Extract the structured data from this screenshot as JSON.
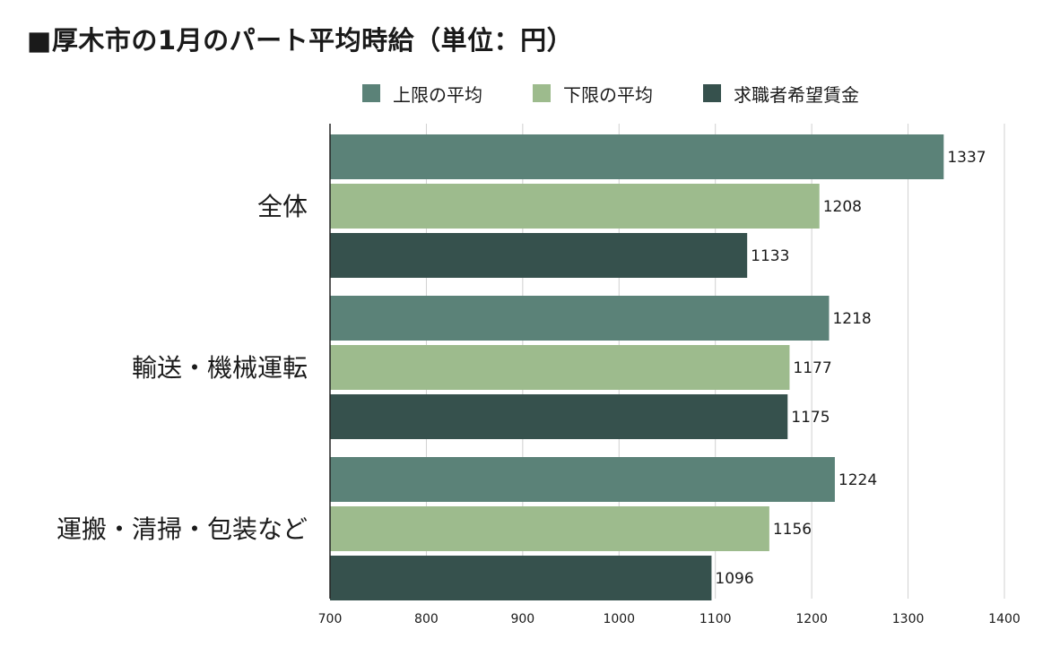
{
  "chart_data": {
    "type": "bar",
    "orientation": "horizontal",
    "title": "■厚木市の1月のパート平均時給（単位：円）",
    "categories": [
      "全体",
      "輸送・機械運転",
      "運搬・清掃・包装など"
    ],
    "series": [
      {
        "name": "上限の平均",
        "color": "#5b8278",
        "values": [
          1337,
          1218,
          1224
        ]
      },
      {
        "name": "下限の平均",
        "color": "#9dbb8d",
        "values": [
          1208,
          1177,
          1156
        ]
      },
      {
        "name": "求職者希望賃金",
        "color": "#36514d",
        "values": [
          1133,
          1175,
          1096
        ]
      }
    ],
    "xlim": [
      700,
      1400
    ],
    "xticks": [
      700,
      800,
      900,
      1000,
      1100,
      1200,
      1300,
      1400
    ],
    "xlabel": "",
    "ylabel": "",
    "grid": true,
    "legend_position": "top"
  }
}
